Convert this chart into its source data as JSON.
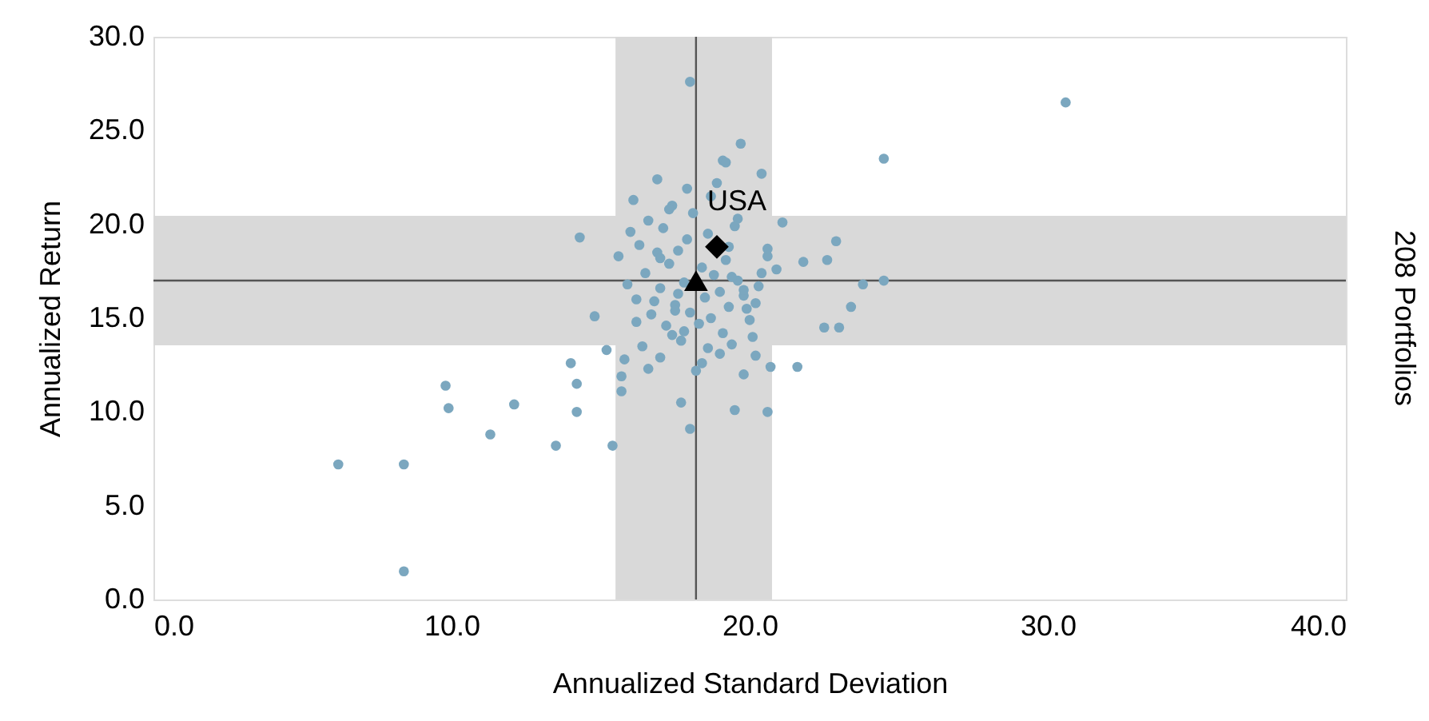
{
  "chart_data": {
    "type": "scatter",
    "xlabel": "Annualized Standard Deviation",
    "ylabel": "Annualized Return",
    "y2label": "208 Portfolios",
    "xlim": [
      0,
      40
    ],
    "ylim": [
      0,
      30
    ],
    "xticks": [
      {
        "value": 0,
        "label": "0.0"
      },
      {
        "value": 10,
        "label": "10.0"
      },
      {
        "value": 20,
        "label": "20.0"
      },
      {
        "value": 30,
        "label": "30.0"
      },
      {
        "value": 40,
        "label": "40.0"
      }
    ],
    "yticks": [
      {
        "value": 0,
        "label": "0.0"
      },
      {
        "value": 5,
        "label": "5.0"
      },
      {
        "value": 10,
        "label": "10.0"
      },
      {
        "value": 15,
        "label": "15.0"
      },
      {
        "value": 20,
        "label": "20.0"
      },
      {
        "value": 25,
        "label": "25.0"
      },
      {
        "value": 30,
        "label": "30.0"
      }
    ],
    "grid": false,
    "bands": [
      {
        "axis": "x",
        "from": 15.5,
        "to": 20.75,
        "color": "#d9d9d9"
      },
      {
        "axis": "y",
        "from": 13.55,
        "to": 20.45,
        "color": "#d9d9d9"
      }
    ],
    "ref_lines": [
      {
        "axis": "x",
        "value": 18.2,
        "color": "#555555"
      },
      {
        "axis": "y",
        "value": 17.0,
        "color": "#555555"
      }
    ],
    "annotations": [
      {
        "text": "USA",
        "x": 18.9,
        "y": 18.8
      }
    ],
    "series": [
      {
        "color": "#7ba7bf",
        "marker": "circle",
        "x": [
          6.2,
          8.4,
          8.4,
          9.8,
          9.9,
          11.3,
          12.1,
          13.5,
          14.0,
          14.2,
          14.2,
          14.3,
          14.8,
          15.2,
          15.4,
          15.7,
          15.7,
          17.7,
          18.0,
          18.0,
          30.6,
          24.5,
          24.5,
          23.8,
          23.4,
          22.9,
          22.6,
          22.5,
          23.0,
          21.8,
          21.6,
          20.9,
          20.7,
          20.6,
          19.1,
          19.2,
          19.7,
          20.4,
          21.1,
          20.6,
          20.6,
          19.5,
          19.8,
          15.6,
          15.9,
          16.0,
          16.2,
          16.3,
          16.5,
          16.6,
          16.8,
          16.9,
          17.0,
          17.1,
          17.2,
          17.3,
          17.4,
          17.5,
          17.6,
          17.7,
          17.8,
          17.9,
          18.0,
          18.1,
          18.3,
          18.4,
          18.5,
          18.6,
          18.7,
          18.8,
          19.0,
          19.1,
          19.2,
          19.3,
          19.4,
          19.6,
          19.8,
          20.0,
          20.2,
          20.4,
          16.1,
          16.4,
          16.7,
          17.0,
          17.3,
          17.6,
          17.9,
          18.4,
          18.7,
          19.0,
          19.3,
          19.6,
          19.9,
          20.2,
          15.8,
          16.6,
          17.4,
          18.2,
          19.5,
          20.3,
          16.2,
          17.0,
          17.8,
          18.9,
          19.8,
          16.9,
          17.5,
          18.6,
          19.4,
          20.1
        ],
        "values": [
          7.2,
          7.2,
          1.5,
          11.4,
          10.2,
          8.8,
          10.4,
          8.2,
          12.6,
          11.5,
          10.0,
          19.3,
          15.1,
          13.3,
          8.2,
          11.9,
          11.1,
          10.5,
          9.1,
          27.6,
          26.5,
          23.5,
          17.0,
          16.8,
          15.6,
          19.1,
          18.1,
          14.5,
          14.5,
          18.0,
          12.4,
          17.6,
          12.4,
          18.3,
          23.4,
          23.3,
          24.3,
          22.7,
          20.1,
          18.7,
          10.0,
          10.1,
          12.0,
          18.3,
          16.8,
          19.6,
          14.8,
          18.9,
          17.4,
          20.2,
          15.9,
          18.5,
          16.6,
          19.8,
          14.6,
          17.9,
          21.0,
          15.7,
          18.6,
          13.8,
          16.9,
          19.2,
          15.3,
          20.6,
          14.7,
          17.7,
          16.1,
          19.5,
          15.0,
          17.3,
          16.4,
          14.2,
          18.1,
          15.6,
          13.6,
          17.0,
          16.2,
          14.9,
          15.8,
          17.4,
          21.3,
          13.5,
          15.2,
          12.9,
          20.8,
          16.3,
          21.9,
          12.6,
          21.5,
          13.1,
          18.8,
          20.3,
          15.5,
          13.0,
          12.8,
          12.3,
          14.1,
          12.2,
          19.9,
          16.7,
          16.0,
          18.2,
          14.3,
          22.2,
          16.5,
          22.4,
          15.4,
          13.4,
          17.2,
          14.0
        ]
      },
      {
        "color": "#000000",
        "marker": "diamond",
        "x": [
          18.9
        ],
        "values": [
          18.8
        ]
      },
      {
        "color": "#000000",
        "marker": "triangle",
        "x": [
          18.2
        ],
        "values": [
          17.0
        ]
      }
    ]
  }
}
